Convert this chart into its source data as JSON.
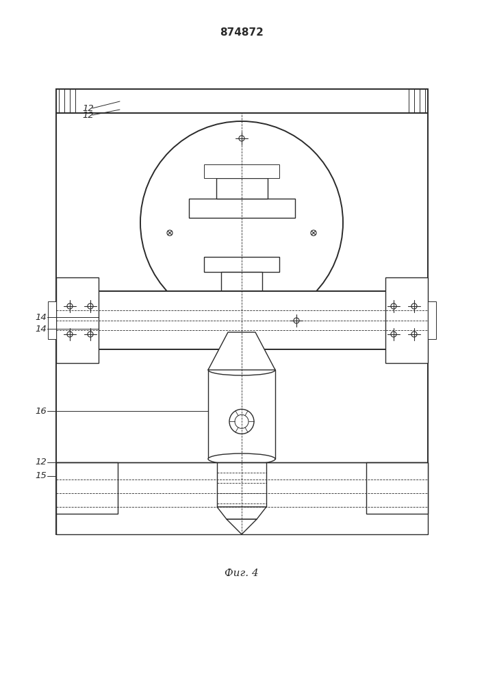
{
  "title": "874872",
  "caption": "Фиг. 4",
  "line_color": "#2a2a2a",
  "bg_color": "#ffffff",
  "lw_thin": 0.7,
  "lw_med": 1.0,
  "lw_thick": 1.4
}
